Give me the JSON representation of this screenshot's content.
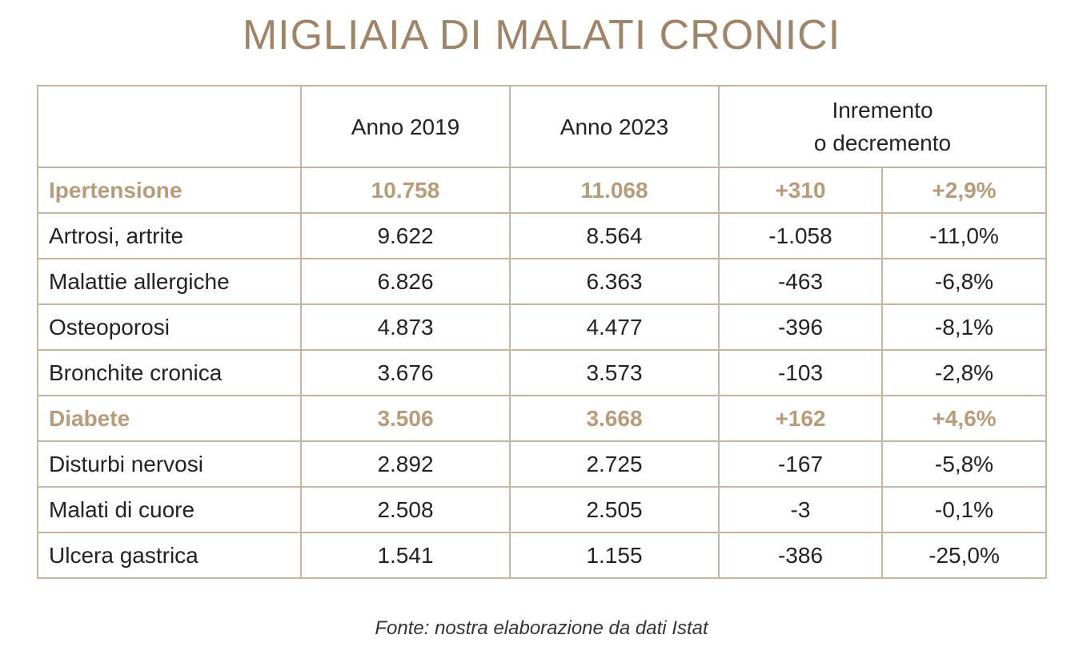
{
  "chart_data": {
    "type": "table",
    "title": "MIGLIAIA DI MALATI CRONICI",
    "columns": [
      "",
      "Anno 2019",
      "Anno 2023",
      "Inremento o decremento"
    ],
    "header_line1": "Inremento",
    "header_line2": "o decremento",
    "rows": [
      {
        "label": "Ipertensione",
        "highlight": true,
        "y2019": "10.758",
        "y2023": "11.068",
        "delta": "+310",
        "pct": "+2,9%"
      },
      {
        "label": "Artrosi, artrite",
        "highlight": false,
        "y2019": "9.622",
        "y2023": "8.564",
        "delta": "-1.058",
        "pct": "-11,0%"
      },
      {
        "label": "Malattie allergiche",
        "highlight": false,
        "y2019": "6.826",
        "y2023": "6.363",
        "delta": "-463",
        "pct": "-6,8%"
      },
      {
        "label": "Osteoporosi",
        "highlight": false,
        "y2019": "4.873",
        "y2023": "4.477",
        "delta": "-396",
        "pct": "-8,1%"
      },
      {
        "label": "Bronchite cronica",
        "highlight": false,
        "y2019": "3.676",
        "y2023": "3.573",
        "delta": "-103",
        "pct": "-2,8%"
      },
      {
        "label": "Diabete",
        "highlight": true,
        "y2019": "3.506",
        "y2023": "3.668",
        "delta": "+162",
        "pct": "+4,6%"
      },
      {
        "label": "Disturbi nervosi",
        "highlight": false,
        "y2019": "2.892",
        "y2023": "2.725",
        "delta": "-167",
        "pct": "-5,8%"
      },
      {
        "label": "Malati di cuore",
        "highlight": false,
        "y2019": "2.508",
        "y2023": "2.505",
        "delta": "-3",
        "pct": "-0,1%"
      },
      {
        "label": "Ulcera gastrica",
        "highlight": false,
        "y2019": "1.541",
        "y2023": "1.155",
        "delta": "-386",
        "pct": "-25,0%"
      }
    ],
    "source": "Fonte: nostra elaborazione da dati Istat"
  },
  "colors": {
    "title": "#a08467",
    "highlight": "#b89b78",
    "border": "#c9b59d"
  }
}
